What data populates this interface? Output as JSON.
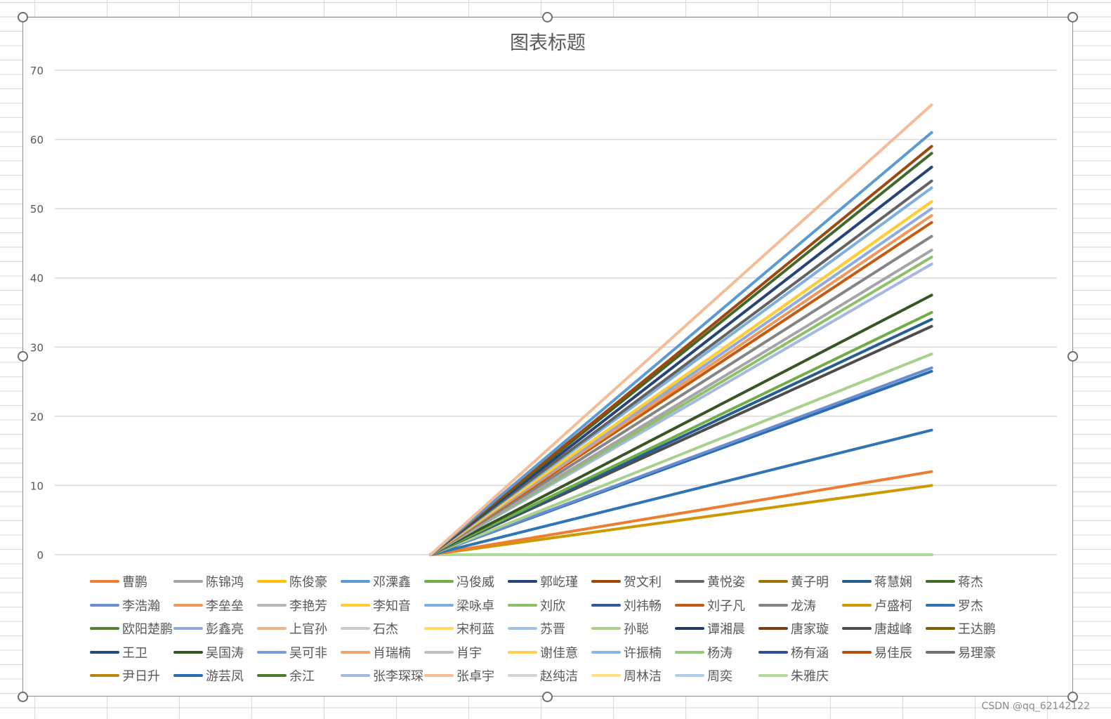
{
  "watermark": "CSDN @qq_62142122",
  "chart_data": {
    "type": "line",
    "title": "图表标题",
    "xlabel": "",
    "ylabel": "",
    "ylim": [
      0,
      70
    ],
    "yticks": [
      0,
      10,
      20,
      30,
      40,
      50,
      60,
      70
    ],
    "x": [
      "",
      "",
      "",
      ""
    ],
    "grid": true,
    "legend_position": "bottom",
    "series": [
      {
        "name": "曹鹏",
        "color": "#ed7d31",
        "values": [
          null,
          0,
          6,
          12
        ]
      },
      {
        "name": "陈锦鸿",
        "color": "#a5a5a5",
        "values": [
          null,
          0,
          22,
          44
        ]
      },
      {
        "name": "陈俊豪",
        "color": "#ffc000",
        "values": [
          null,
          0,
          25.5,
          51
        ]
      },
      {
        "name": "邓溧鑫",
        "color": "#5b9bd5",
        "values": [
          null,
          0,
          30.5,
          61
        ]
      },
      {
        "name": "冯俊威",
        "color": "#70ad47",
        "values": [
          null,
          0,
          17.5,
          35
        ]
      },
      {
        "name": "郭屹瑾",
        "color": "#264478",
        "values": [
          null,
          0,
          28,
          56
        ]
      },
      {
        "name": "贺文利",
        "color": "#9e480e",
        "values": [
          null,
          0,
          29.5,
          59
        ]
      },
      {
        "name": "黄悦姿",
        "color": "#636363",
        "values": [
          null,
          0,
          27,
          54
        ]
      },
      {
        "name": "黄子明",
        "color": "#997300",
        "values": [
          null,
          0,
          0,
          0
        ]
      },
      {
        "name": "蒋慧娴",
        "color": "#255e91",
        "values": [
          null,
          0,
          17,
          34
        ]
      },
      {
        "name": "蒋杰",
        "color": "#43682b",
        "values": [
          null,
          0,
          29,
          58
        ]
      },
      {
        "name": "李浩瀚",
        "color": "#698ed0",
        "values": [
          null,
          0,
          13.5,
          27
        ]
      },
      {
        "name": "李垒垒",
        "color": "#f1975a",
        "values": [
          null,
          0,
          24.5,
          49
        ]
      },
      {
        "name": "李艳芳",
        "color": "#b7b7b7",
        "values": [
          null,
          0,
          0,
          0
        ]
      },
      {
        "name": "李知音",
        "color": "#ffcd33",
        "values": [
          null,
          0,
          25.5,
          51
        ]
      },
      {
        "name": "梁咏卓",
        "color": "#7cafdd",
        "values": [
          null,
          0,
          26.5,
          53
        ]
      },
      {
        "name": "刘欣",
        "color": "#8cc168",
        "values": [
          null,
          0,
          21.5,
          43
        ]
      },
      {
        "name": "刘祎畅",
        "color": "#335aa1",
        "values": [
          null,
          0,
          0,
          0
        ]
      },
      {
        "name": "刘子凡",
        "color": "#c55a11",
        "values": [
          null,
          0,
          24,
          48
        ]
      },
      {
        "name": "龙涛",
        "color": "#848484",
        "values": [
          null,
          0,
          23,
          46
        ]
      },
      {
        "name": "卢盛柯",
        "color": "#cc9a00",
        "values": [
          null,
          0,
          5,
          10
        ]
      },
      {
        "name": "罗杰",
        "color": "#2e75b6",
        "values": [
          null,
          0,
          9,
          18
        ]
      },
      {
        "name": "欧阳楚鹏",
        "color": "#548235",
        "values": [
          null,
          0,
          0,
          0
        ]
      },
      {
        "name": "彭鑫亮",
        "color": "#8faadc",
        "values": [
          null,
          0,
          25,
          50
        ]
      },
      {
        "name": "上官孙",
        "color": "#f4b183",
        "values": [
          null,
          0,
          0,
          0
        ]
      },
      {
        "name": "石杰",
        "color": "#c9c9c9",
        "values": [
          null,
          0,
          0,
          0
        ]
      },
      {
        "name": "宋柯蓝",
        "color": "#ffd966",
        "values": [
          null,
          0,
          0,
          0
        ]
      },
      {
        "name": "苏晋",
        "color": "#9dc3e6",
        "values": [
          null,
          0,
          0,
          0
        ]
      },
      {
        "name": "孙聪",
        "color": "#a9d18e",
        "values": [
          null,
          0,
          14.5,
          29
        ]
      },
      {
        "name": "谭湘晨",
        "color": "#203864",
        "values": [
          null,
          0,
          0,
          0
        ]
      },
      {
        "name": "唐家璇",
        "color": "#843c0c",
        "values": [
          null,
          0,
          0,
          0
        ]
      },
      {
        "name": "唐越峰",
        "color": "#4d4d4d",
        "values": [
          null,
          0,
          16.5,
          33
        ]
      },
      {
        "name": "王达鹏",
        "color": "#7f6000",
        "values": [
          null,
          0,
          0,
          0
        ]
      },
      {
        "name": "王卫",
        "color": "#1f4e79",
        "values": [
          null,
          0,
          0,
          0
        ]
      },
      {
        "name": "吴国涛",
        "color": "#375623",
        "values": [
          null,
          0,
          18.75,
          37.5
        ]
      },
      {
        "name": "吴可非",
        "color": "#7a9cd6",
        "values": [
          null,
          0,
          0,
          0
        ]
      },
      {
        "name": "肖瑞楠",
        "color": "#f2a46f",
        "values": [
          null,
          0,
          0,
          0
        ]
      },
      {
        "name": "肖宇",
        "color": "#bfbfbf",
        "values": [
          null,
          0,
          0,
          0
        ]
      },
      {
        "name": "谢佳意",
        "color": "#ffd24d",
        "values": [
          null,
          0,
          0,
          0
        ]
      },
      {
        "name": "许振楠",
        "color": "#8ab6e1",
        "values": [
          null,
          0,
          0,
          0
        ]
      },
      {
        "name": "杨涛",
        "color": "#97c97a",
        "values": [
          null,
          0,
          0,
          0
        ]
      },
      {
        "name": "杨有涵",
        "color": "#2f4f8f",
        "values": [
          null,
          0,
          0,
          0
        ]
      },
      {
        "name": "易佳辰",
        "color": "#b5500f",
        "values": [
          null,
          0,
          0,
          0
        ]
      },
      {
        "name": "易理豪",
        "color": "#707070",
        "values": [
          null,
          0,
          0,
          0
        ]
      },
      {
        "name": "尹日升",
        "color": "#b8860b",
        "values": [
          null,
          0,
          0,
          0
        ]
      },
      {
        "name": "游芸凤",
        "color": "#2b6cb0",
        "values": [
          null,
          0,
          13.25,
          26.5
        ]
      },
      {
        "name": "余江",
        "color": "#4a7a2c",
        "values": [
          null,
          0,
          0,
          0
        ]
      },
      {
        "name": "张李琛琛",
        "color": "#a4b8e0",
        "values": [
          null,
          0,
          21,
          42
        ]
      },
      {
        "name": "张卓宇",
        "color": "#f5bc98",
        "values": [
          null,
          0,
          32.5,
          65
        ]
      },
      {
        "name": "赵纯洁",
        "color": "#d4d4d4",
        "values": [
          null,
          0,
          0,
          0
        ]
      },
      {
        "name": "周林洁",
        "color": "#ffe080",
        "values": [
          null,
          0,
          0,
          0
        ]
      },
      {
        "name": "周奕",
        "color": "#b0cde9",
        "values": [
          null,
          0,
          0,
          0
        ]
      },
      {
        "name": "朱雅庆",
        "color": "#b3d89c",
        "values": [
          null,
          0,
          0,
          0
        ]
      }
    ]
  }
}
